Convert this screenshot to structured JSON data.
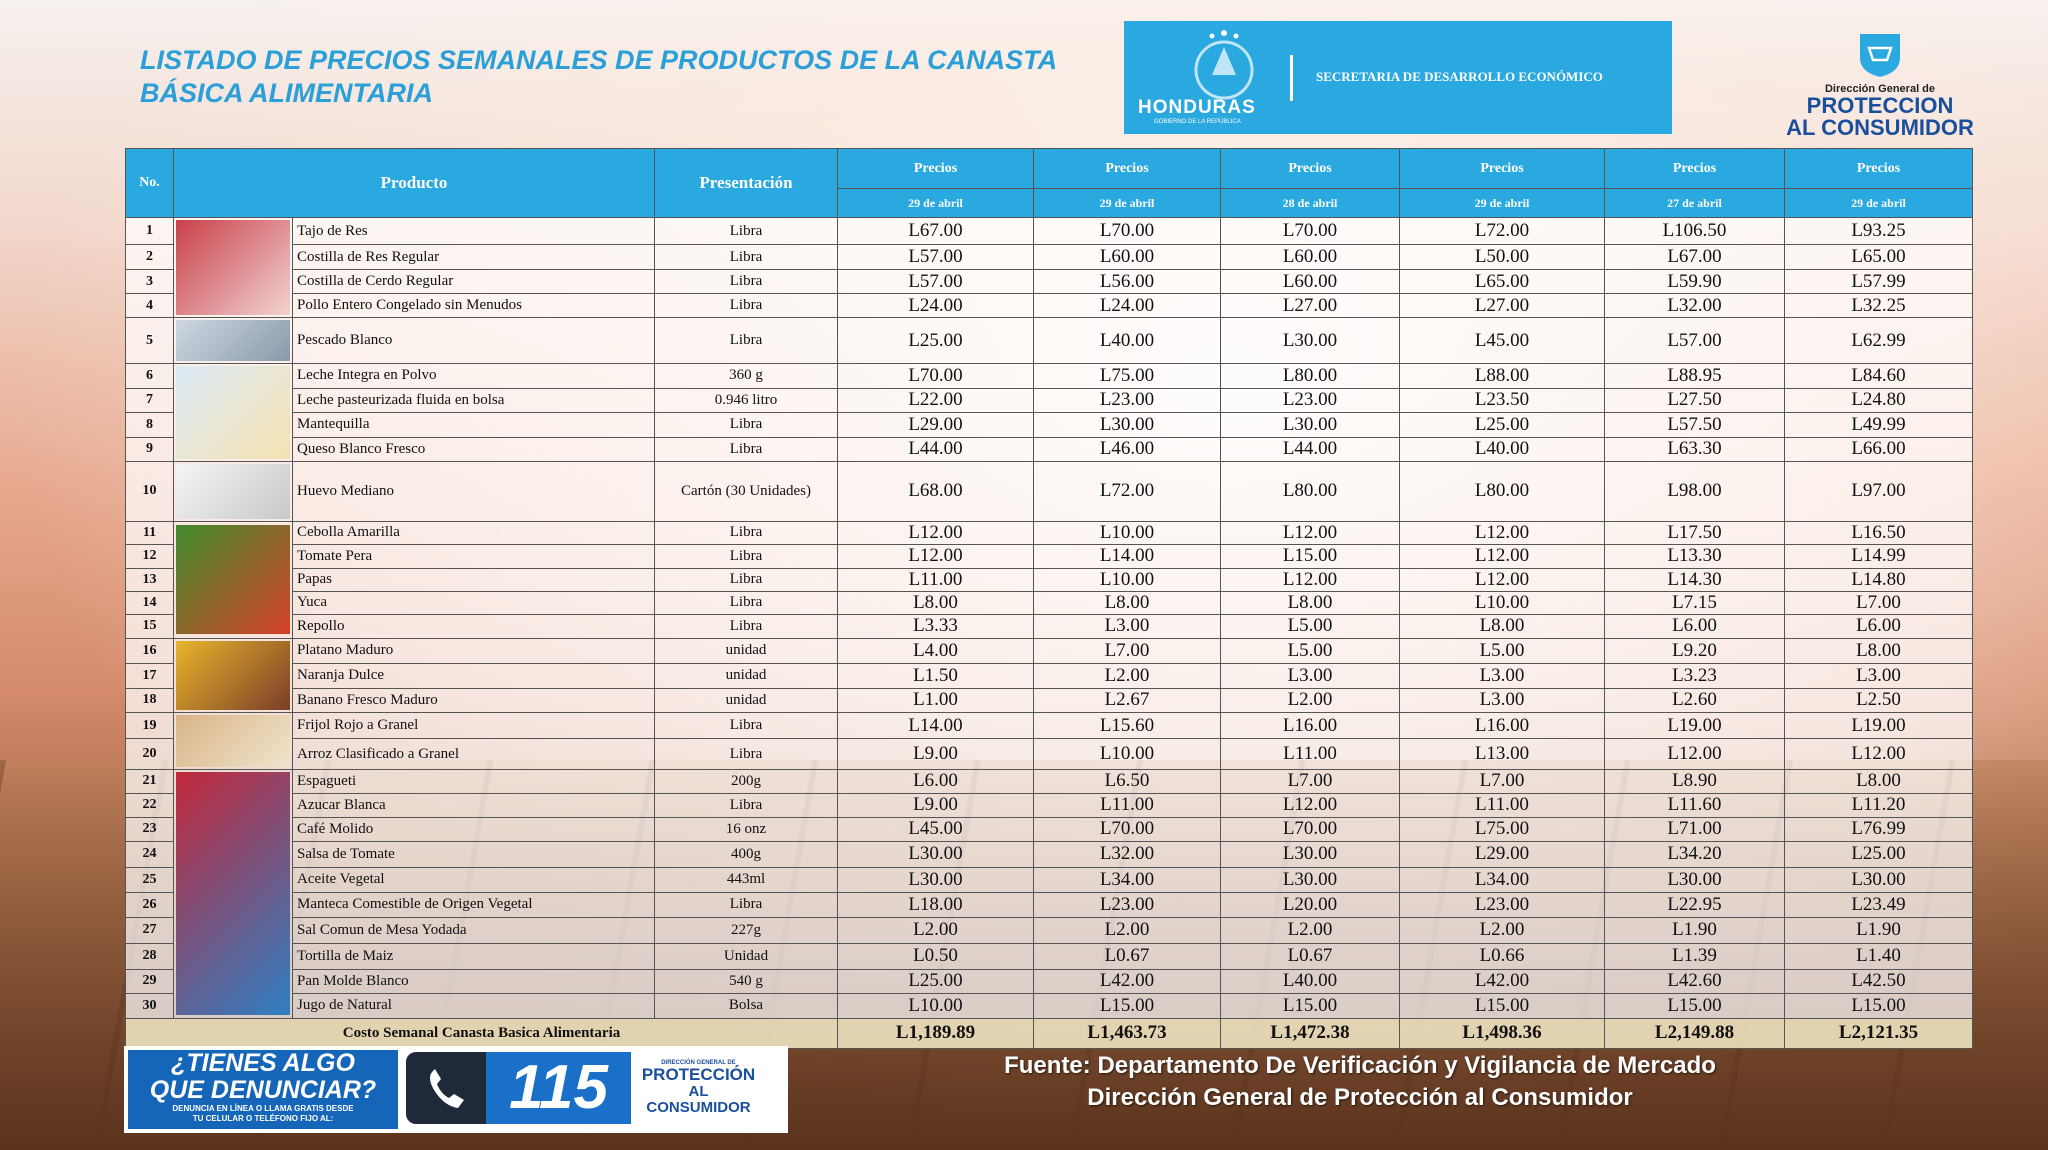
{
  "header": {
    "title_line1": "LISTADO DE PRECIOS SEMANALES DE PRODUCTOS DE LA CANASTA",
    "title_line2": "BÁSICA ALIMENTARIA"
  },
  "logos": {
    "country": "HONDURAS",
    "government": "GOBIERNO DE LA REPÚBLICA",
    "secretary": "SECRETARIA DE DESARROLLO ECONÓMICO",
    "agency_small": "Dirección General de",
    "agency_line1": "PROTECCION",
    "agency_line2": "AL CONSUMIDOR"
  },
  "table": {
    "columns": [
      "No.",
      "Producto",
      "Presentación"
    ],
    "price_columns": [
      {
        "label": "Precios",
        "date": "29 de abril"
      },
      {
        "label": "Precios",
        "date": "29 de abril"
      },
      {
        "label": "Precios",
        "date": "28 de abril"
      },
      {
        "label": "Precios",
        "date": "29 de abril"
      },
      {
        "label": "Precios",
        "date": "27 de abril"
      },
      {
        "label": "Precios",
        "date": "29 de abril"
      }
    ],
    "rows": [
      [
        1,
        "Tajo de Res",
        "Libra",
        "L67.00",
        "L70.00",
        "L70.00",
        "L72.00",
        "L106.50",
        "L93.25"
      ],
      [
        2,
        "Costilla de Res Regular",
        "Libra",
        "L57.00",
        "L60.00",
        "L60.00",
        "L50.00",
        "L67.00",
        "L65.00"
      ],
      [
        3,
        "Costilla de Cerdo Regular",
        "Libra",
        "L57.00",
        "L56.00",
        "L60.00",
        "L65.00",
        "L59.90",
        "L57.99"
      ],
      [
        4,
        "Pollo Entero Congelado sin Menudos",
        "Libra",
        "L24.00",
        "L24.00",
        "L27.00",
        "L27.00",
        "L32.00",
        "L32.25"
      ],
      [
        5,
        "Pescado Blanco",
        "Libra",
        "L25.00",
        "L40.00",
        "L30.00",
        "L45.00",
        "L57.00",
        "L62.99"
      ],
      [
        6,
        "Leche Integra en Polvo",
        "360 g",
        "L70.00",
        "L75.00",
        "L80.00",
        "L88.00",
        "L88.95",
        "L84.60"
      ],
      [
        7,
        "Leche pasteurizada fluida en bolsa",
        "0.946 litro",
        "L22.00",
        "L23.00",
        "L23.00",
        "L23.50",
        "L27.50",
        "L24.80"
      ],
      [
        8,
        "Mantequilla",
        "Libra",
        "L29.00",
        "L30.00",
        "L30.00",
        "L25.00",
        "L57.50",
        "L49.99"
      ],
      [
        9,
        "Queso Blanco Fresco",
        "Libra",
        "L44.00",
        "L46.00",
        "L44.00",
        "L40.00",
        "L63.30",
        "L66.00"
      ],
      [
        10,
        "Huevo Mediano",
        "Cartón (30 Unidades)",
        "L68.00",
        "L72.00",
        "L80.00",
        "L80.00",
        "L98.00",
        "L97.00"
      ],
      [
        11,
        "Cebolla Amarilla",
        "Libra",
        "L12.00",
        "L10.00",
        "L12.00",
        "L12.00",
        "L17.50",
        "L16.50"
      ],
      [
        12,
        "Tomate Pera",
        "Libra",
        "L12.00",
        "L14.00",
        "L15.00",
        "L12.00",
        "L13.30",
        "L14.99"
      ],
      [
        13,
        "Papas",
        "Libra",
        "L11.00",
        "L10.00",
        "L12.00",
        "L12.00",
        "L14.30",
        "L14.80"
      ],
      [
        14,
        "Yuca",
        "Libra",
        "L8.00",
        "L8.00",
        "L8.00",
        "L10.00",
        "L7.15",
        "L7.00"
      ],
      [
        15,
        "Repollo",
        "Libra",
        "L3.33",
        "L3.00",
        "L5.00",
        "L8.00",
        "L6.00",
        "L6.00"
      ],
      [
        16,
        "Platano Maduro",
        "unidad",
        "L4.00",
        "L7.00",
        "L5.00",
        "L5.00",
        "L9.20",
        "L8.00"
      ],
      [
        17,
        "Naranja Dulce",
        "unidad",
        "L1.50",
        "L2.00",
        "L3.00",
        "L3.00",
        "L3.23",
        "L3.00"
      ],
      [
        18,
        "Banano Fresco Maduro",
        "unidad",
        "L1.00",
        "L2.67",
        "L2.00",
        "L3.00",
        "L2.60",
        "L2.50"
      ],
      [
        19,
        "Frijol Rojo a Granel",
        "Libra",
        "L14.00",
        "L15.60",
        "L16.00",
        "L16.00",
        "L19.00",
        "L19.00"
      ],
      [
        20,
        "Arroz Clasificado a Granel",
        "Libra",
        "L9.00",
        "L10.00",
        "L11.00",
        "L13.00",
        "L12.00",
        "L12.00"
      ],
      [
        21,
        "Espagueti",
        "200g",
        "L6.00",
        "L6.50",
        "L7.00",
        "L7.00",
        "L8.90",
        "L8.00"
      ],
      [
        22,
        "Azucar Blanca",
        "Libra",
        "L9.00",
        "L11.00",
        "L12.00",
        "L11.00",
        "L11.60",
        "L11.20"
      ],
      [
        23,
        "Café Molido",
        "16 onz",
        "L45.00",
        "L70.00",
        "L70.00",
        "L75.00",
        "L71.00",
        "L76.99"
      ],
      [
        24,
        "Salsa de Tomate",
        "400g",
        "L30.00",
        "L32.00",
        "L30.00",
        "L29.00",
        "L34.20",
        "L25.00"
      ],
      [
        25,
        "Aceite Vegetal",
        "443ml",
        "L30.00",
        "L34.00",
        "L30.00",
        "L34.00",
        "L30.00",
        "L30.00"
      ],
      [
        26,
        "Manteca Comestible de Origen Vegetal",
        "Libra",
        "L18.00",
        "L23.00",
        "L20.00",
        "L23.00",
        "L22.95",
        "L23.49"
      ],
      [
        27,
        "Sal Comun de Mesa Yodada",
        "227g",
        "L2.00",
        "L2.00",
        "L2.00",
        "L2.00",
        "L1.90",
        "L1.90"
      ],
      [
        28,
        "Tortilla de Maiz",
        "Unidad",
        "L0.50",
        "L0.67",
        "L0.67",
        "L0.66",
        "L1.39",
        "L1.40"
      ],
      [
        29,
        "Pan  Molde Blanco",
        "540 g",
        "L25.00",
        "L42.00",
        "L40.00",
        "L42.00",
        "L42.60",
        "L42.50"
      ],
      [
        30,
        "Jugo de Natural",
        "Bolsa",
        "L10.00",
        "L15.00",
        "L15.00",
        "L15.00",
        "L15.00",
        "L15.00"
      ]
    ],
    "total": {
      "label": "Costo Semanal  Canasta Basica Alimentaria",
      "values": [
        "L1,189.89",
        "L1,463.73",
        "L1,472.38",
        "L1,498.36",
        "L2,149.88",
        "L2,121.35"
      ]
    }
  },
  "banner": {
    "question_line1": "¿TIENES ALGO",
    "question_line2": "QUE DENUNCIAR?",
    "note_line1": "DENUNCIA EN LÍNEA O LLAMA GRATIS DESDE",
    "note_line2": "TU CELULAR O TELÉFONO FIJO AL:",
    "phone": "115",
    "agency_small": "DIRECCIÓN GENERAL DE",
    "agency_line1": "PROTECCIÓN",
    "agency_line2": "AL CONSUMIDOR"
  },
  "source": {
    "line1": "Fuente: Departamento De Verificación y Vigilancia de Mercado",
    "line2": "Dirección General de Protección al Consumidor"
  }
}
